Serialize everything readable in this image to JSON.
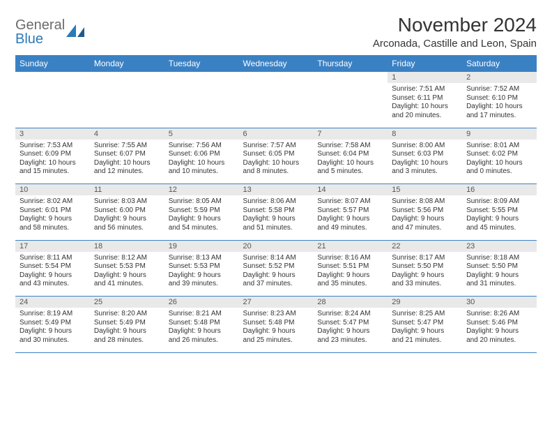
{
  "brand": {
    "name1": "General",
    "name2": "Blue"
  },
  "title": "November 2024",
  "location": "Arconada, Castille and Leon, Spain",
  "colors": {
    "header_bg": "#3a81c4",
    "header_text": "#ffffff",
    "daynum_bg": "#e9e9e9",
    "border": "#3a81c4",
    "logo_gray": "#6b6b6b",
    "logo_blue": "#2a7ab8"
  },
  "day_headers": [
    "Sunday",
    "Monday",
    "Tuesday",
    "Wednesday",
    "Thursday",
    "Friday",
    "Saturday"
  ],
  "weeks": [
    {
      "nums": [
        "",
        "",
        "",
        "",
        "",
        "1",
        "2"
      ],
      "cells": [
        null,
        null,
        null,
        null,
        null,
        {
          "sunrise": "Sunrise: 7:51 AM",
          "sunset": "Sunset: 6:11 PM",
          "day1": "Daylight: 10 hours",
          "day2": "and 20 minutes."
        },
        {
          "sunrise": "Sunrise: 7:52 AM",
          "sunset": "Sunset: 6:10 PM",
          "day1": "Daylight: 10 hours",
          "day2": "and 17 minutes."
        }
      ]
    },
    {
      "nums": [
        "3",
        "4",
        "5",
        "6",
        "7",
        "8",
        "9"
      ],
      "cells": [
        {
          "sunrise": "Sunrise: 7:53 AM",
          "sunset": "Sunset: 6:09 PM",
          "day1": "Daylight: 10 hours",
          "day2": "and 15 minutes."
        },
        {
          "sunrise": "Sunrise: 7:55 AM",
          "sunset": "Sunset: 6:07 PM",
          "day1": "Daylight: 10 hours",
          "day2": "and 12 minutes."
        },
        {
          "sunrise": "Sunrise: 7:56 AM",
          "sunset": "Sunset: 6:06 PM",
          "day1": "Daylight: 10 hours",
          "day2": "and 10 minutes."
        },
        {
          "sunrise": "Sunrise: 7:57 AM",
          "sunset": "Sunset: 6:05 PM",
          "day1": "Daylight: 10 hours",
          "day2": "and 8 minutes."
        },
        {
          "sunrise": "Sunrise: 7:58 AM",
          "sunset": "Sunset: 6:04 PM",
          "day1": "Daylight: 10 hours",
          "day2": "and 5 minutes."
        },
        {
          "sunrise": "Sunrise: 8:00 AM",
          "sunset": "Sunset: 6:03 PM",
          "day1": "Daylight: 10 hours",
          "day2": "and 3 minutes."
        },
        {
          "sunrise": "Sunrise: 8:01 AM",
          "sunset": "Sunset: 6:02 PM",
          "day1": "Daylight: 10 hours",
          "day2": "and 0 minutes."
        }
      ]
    },
    {
      "nums": [
        "10",
        "11",
        "12",
        "13",
        "14",
        "15",
        "16"
      ],
      "cells": [
        {
          "sunrise": "Sunrise: 8:02 AM",
          "sunset": "Sunset: 6:01 PM",
          "day1": "Daylight: 9 hours",
          "day2": "and 58 minutes."
        },
        {
          "sunrise": "Sunrise: 8:03 AM",
          "sunset": "Sunset: 6:00 PM",
          "day1": "Daylight: 9 hours",
          "day2": "and 56 minutes."
        },
        {
          "sunrise": "Sunrise: 8:05 AM",
          "sunset": "Sunset: 5:59 PM",
          "day1": "Daylight: 9 hours",
          "day2": "and 54 minutes."
        },
        {
          "sunrise": "Sunrise: 8:06 AM",
          "sunset": "Sunset: 5:58 PM",
          "day1": "Daylight: 9 hours",
          "day2": "and 51 minutes."
        },
        {
          "sunrise": "Sunrise: 8:07 AM",
          "sunset": "Sunset: 5:57 PM",
          "day1": "Daylight: 9 hours",
          "day2": "and 49 minutes."
        },
        {
          "sunrise": "Sunrise: 8:08 AM",
          "sunset": "Sunset: 5:56 PM",
          "day1": "Daylight: 9 hours",
          "day2": "and 47 minutes."
        },
        {
          "sunrise": "Sunrise: 8:09 AM",
          "sunset": "Sunset: 5:55 PM",
          "day1": "Daylight: 9 hours",
          "day2": "and 45 minutes."
        }
      ]
    },
    {
      "nums": [
        "17",
        "18",
        "19",
        "20",
        "21",
        "22",
        "23"
      ],
      "cells": [
        {
          "sunrise": "Sunrise: 8:11 AM",
          "sunset": "Sunset: 5:54 PM",
          "day1": "Daylight: 9 hours",
          "day2": "and 43 minutes."
        },
        {
          "sunrise": "Sunrise: 8:12 AM",
          "sunset": "Sunset: 5:53 PM",
          "day1": "Daylight: 9 hours",
          "day2": "and 41 minutes."
        },
        {
          "sunrise": "Sunrise: 8:13 AM",
          "sunset": "Sunset: 5:53 PM",
          "day1": "Daylight: 9 hours",
          "day2": "and 39 minutes."
        },
        {
          "sunrise": "Sunrise: 8:14 AM",
          "sunset": "Sunset: 5:52 PM",
          "day1": "Daylight: 9 hours",
          "day2": "and 37 minutes."
        },
        {
          "sunrise": "Sunrise: 8:16 AM",
          "sunset": "Sunset: 5:51 PM",
          "day1": "Daylight: 9 hours",
          "day2": "and 35 minutes."
        },
        {
          "sunrise": "Sunrise: 8:17 AM",
          "sunset": "Sunset: 5:50 PM",
          "day1": "Daylight: 9 hours",
          "day2": "and 33 minutes."
        },
        {
          "sunrise": "Sunrise: 8:18 AM",
          "sunset": "Sunset: 5:50 PM",
          "day1": "Daylight: 9 hours",
          "day2": "and 31 minutes."
        }
      ]
    },
    {
      "nums": [
        "24",
        "25",
        "26",
        "27",
        "28",
        "29",
        "30"
      ],
      "cells": [
        {
          "sunrise": "Sunrise: 8:19 AM",
          "sunset": "Sunset: 5:49 PM",
          "day1": "Daylight: 9 hours",
          "day2": "and 30 minutes."
        },
        {
          "sunrise": "Sunrise: 8:20 AM",
          "sunset": "Sunset: 5:49 PM",
          "day1": "Daylight: 9 hours",
          "day2": "and 28 minutes."
        },
        {
          "sunrise": "Sunrise: 8:21 AM",
          "sunset": "Sunset: 5:48 PM",
          "day1": "Daylight: 9 hours",
          "day2": "and 26 minutes."
        },
        {
          "sunrise": "Sunrise: 8:23 AM",
          "sunset": "Sunset: 5:48 PM",
          "day1": "Daylight: 9 hours",
          "day2": "and 25 minutes."
        },
        {
          "sunrise": "Sunrise: 8:24 AM",
          "sunset": "Sunset: 5:47 PM",
          "day1": "Daylight: 9 hours",
          "day2": "and 23 minutes."
        },
        {
          "sunrise": "Sunrise: 8:25 AM",
          "sunset": "Sunset: 5:47 PM",
          "day1": "Daylight: 9 hours",
          "day2": "and 21 minutes."
        },
        {
          "sunrise": "Sunrise: 8:26 AM",
          "sunset": "Sunset: 5:46 PM",
          "day1": "Daylight: 9 hours",
          "day2": "and 20 minutes."
        }
      ]
    }
  ]
}
